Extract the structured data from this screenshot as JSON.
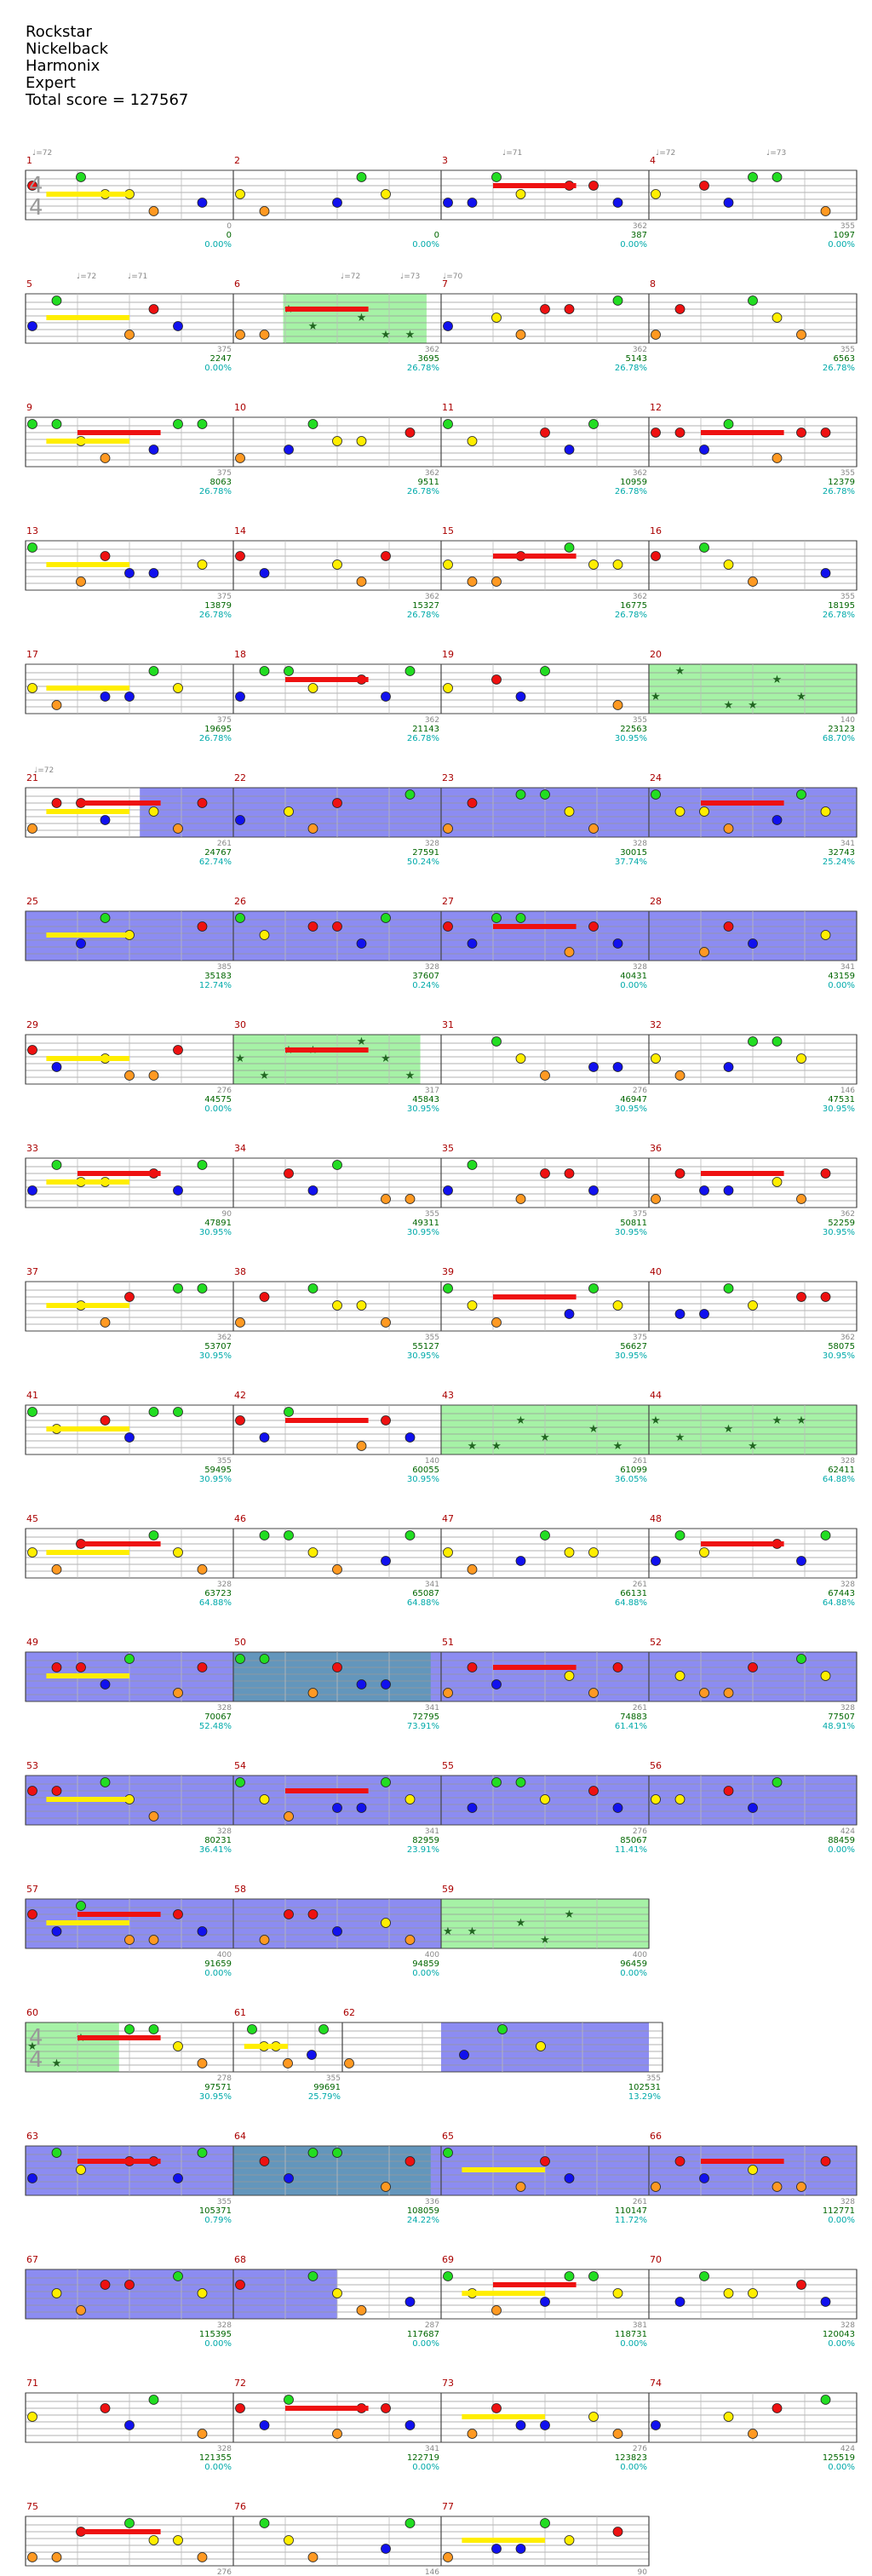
{
  "song": {
    "title": "Rockstar",
    "artist": "Nickelback",
    "charter": "Harmonix",
    "difficulty": "Expert",
    "total_score_label": "Total score = 127567"
  },
  "colors": {
    "green": "#22dd22",
    "red": "#ee1111",
    "yellow": "#ffee00",
    "blue": "#1111ee",
    "orange": "#ff9922",
    "star_power_fill": "#88ee88",
    "overdrive_fill": "#6666ee",
    "measure_number": "#aa0000",
    "score_text": "#006600",
    "multiplier_text": "#00aaaa",
    "tempo_text": "#888888"
  },
  "time_signatures": [
    "4/4 at measure 1",
    "6/4 at measure 60",
    "4/4 at measure 61"
  ],
  "tempo_markers": [
    "♩=72",
    "♩=71",
    "♩=72",
    "♩=73",
    "♩=72",
    "♩=71",
    "♩=72",
    "♩=73",
    "♩=70",
    "♩=72"
  ],
  "rows": [
    {
      "measures": [
        1,
        2,
        3,
        4
      ],
      "cols": [
        {
          "sp": "",
          "score": "",
          "pct": ""
        },
        {
          "sp": "0",
          "score": "0",
          "pct": "0.00%"
        },
        {
          "sp": "",
          "score": "0",
          "pct": "0.00%"
        },
        {
          "sp": "362",
          "score": "387",
          "pct": "0.00%"
        },
        {
          "sp": "355",
          "score": "1097",
          "pct": "0.00%"
        }
      ]
    },
    {
      "measures": [
        5,
        6,
        7,
        8
      ],
      "cols": [
        {
          "sp": "",
          "score": "",
          "pct": ""
        },
        {
          "sp": "375",
          "score": "2247",
          "pct": "0.00%"
        },
        {
          "sp": "362",
          "score": "3695",
          "pct": "26.78%"
        },
        {
          "sp": "362",
          "score": "5143",
          "pct": "26.78%"
        },
        {
          "sp": "355",
          "score": "6563",
          "pct": "26.78%"
        }
      ]
    },
    {
      "measures": [
        9,
        10,
        11,
        12
      ],
      "cols": [
        {
          "sp": "",
          "score": "",
          "pct": ""
        },
        {
          "sp": "375",
          "score": "8063",
          "pct": "26.78%"
        },
        {
          "sp": "362",
          "score": "9511",
          "pct": "26.78%"
        },
        {
          "sp": "362",
          "score": "10959",
          "pct": "26.78%"
        },
        {
          "sp": "355",
          "score": "12379",
          "pct": "26.78%"
        }
      ]
    },
    {
      "measures": [
        13,
        14,
        15,
        16
      ],
      "cols": [
        {
          "sp": "",
          "score": "",
          "pct": ""
        },
        {
          "sp": "375",
          "score": "13879",
          "pct": "26.78%"
        },
        {
          "sp": "362",
          "score": "15327",
          "pct": "26.78%"
        },
        {
          "sp": "362",
          "score": "16775",
          "pct": "26.78%"
        },
        {
          "sp": "355",
          "score": "18195",
          "pct": "26.78%"
        }
      ]
    },
    {
      "measures": [
        17,
        18,
        19,
        20
      ],
      "cols": [
        {
          "sp": "",
          "score": "",
          "pct": ""
        },
        {
          "sp": "375",
          "score": "19695",
          "pct": "26.78%"
        },
        {
          "sp": "362",
          "score": "21143",
          "pct": "26.78%"
        },
        {
          "sp": "355",
          "score": "22563",
          "pct": "30.95%"
        },
        {
          "sp": "140",
          "score": "23123",
          "pct": "68.70%"
        }
      ]
    },
    {
      "measures": [
        21,
        22,
        23,
        24
      ],
      "cols": [
        {
          "sp": "",
          "score": "",
          "pct": ""
        },
        {
          "sp": "261",
          "score": "24767",
          "pct": "62.74%"
        },
        {
          "sp": "328",
          "score": "27591",
          "pct": "50.24%"
        },
        {
          "sp": "328",
          "score": "30015",
          "pct": "37.74%"
        },
        {
          "sp": "341",
          "score": "32743",
          "pct": "25.24%"
        }
      ]
    },
    {
      "measures": [
        25,
        26,
        27,
        28
      ],
      "cols": [
        {
          "sp": "",
          "score": "",
          "pct": ""
        },
        {
          "sp": "385",
          "score": "35183",
          "pct": "12.74%"
        },
        {
          "sp": "328",
          "score": "37607",
          "pct": "0.24%"
        },
        {
          "sp": "328",
          "score": "40431",
          "pct": "0.00%"
        },
        {
          "sp": "341",
          "score": "43159",
          "pct": "0.00%"
        }
      ]
    },
    {
      "measures": [
        29,
        30,
        31,
        32
      ],
      "cols": [
        {
          "sp": "",
          "score": "",
          "pct": ""
        },
        {
          "sp": "276",
          "score": "44575",
          "pct": "0.00%"
        },
        {
          "sp": "317",
          "score": "45843",
          "pct": "30.95%"
        },
        {
          "sp": "276",
          "score": "46947",
          "pct": "30.95%"
        },
        {
          "sp": "146",
          "score": "47531",
          "pct": "30.95%"
        }
      ]
    },
    {
      "measures": [
        33,
        34,
        35,
        36
      ],
      "cols": [
        {
          "sp": "",
          "score": "",
          "pct": ""
        },
        {
          "sp": "90",
          "score": "47891",
          "pct": "30.95%"
        },
        {
          "sp": "355",
          "score": "49311",
          "pct": "30.95%"
        },
        {
          "sp": "375",
          "score": "50811",
          "pct": "30.95%"
        },
        {
          "sp": "362",
          "score": "52259",
          "pct": "30.95%"
        }
      ]
    },
    {
      "measures": [
        37,
        38,
        39,
        40
      ],
      "cols": [
        {
          "sp": "",
          "score": "",
          "pct": ""
        },
        {
          "sp": "362",
          "score": "53707",
          "pct": "30.95%"
        },
        {
          "sp": "355",
          "score": "55127",
          "pct": "30.95%"
        },
        {
          "sp": "375",
          "score": "56627",
          "pct": "30.95%"
        },
        {
          "sp": "362",
          "score": "58075",
          "pct": "30.95%"
        }
      ]
    },
    {
      "measures": [
        41,
        42,
        43,
        44
      ],
      "cols": [
        {
          "sp": "",
          "score": "",
          "pct": ""
        },
        {
          "sp": "355",
          "score": "59495",
          "pct": "30.95%"
        },
        {
          "sp": "140",
          "score": "60055",
          "pct": "30.95%"
        },
        {
          "sp": "261",
          "score": "61099",
          "pct": "36.05%"
        },
        {
          "sp": "328",
          "score": "62411",
          "pct": "64.88%"
        }
      ]
    },
    {
      "measures": [
        45,
        46,
        47,
        48
      ],
      "cols": [
        {
          "sp": "",
          "score": "",
          "pct": ""
        },
        {
          "sp": "328",
          "score": "63723",
          "pct": "64.88%"
        },
        {
          "sp": "341",
          "score": "65087",
          "pct": "64.88%"
        },
        {
          "sp": "261",
          "score": "66131",
          "pct": "64.88%"
        },
        {
          "sp": "328",
          "score": "67443",
          "pct": "64.88%"
        }
      ]
    },
    {
      "measures": [
        49,
        50,
        51,
        52
      ],
      "cols": [
        {
          "sp": "",
          "score": "",
          "pct": ""
        },
        {
          "sp": "328",
          "score": "70067",
          "pct": "52.48%"
        },
        {
          "sp": "341",
          "score": "72795",
          "pct": "73.91%"
        },
        {
          "sp": "261",
          "score": "74883",
          "pct": "61.41%"
        },
        {
          "sp": "328",
          "score": "77507",
          "pct": "48.91%"
        }
      ]
    },
    {
      "measures": [
        53,
        54,
        55,
        56
      ],
      "cols": [
        {
          "sp": "",
          "score": "",
          "pct": ""
        },
        {
          "sp": "328",
          "score": "80231",
          "pct": "36.41%"
        },
        {
          "sp": "341",
          "score": "82959",
          "pct": "23.91%"
        },
        {
          "sp": "276",
          "score": "85067",
          "pct": "11.41%"
        },
        {
          "sp": "424",
          "score": "88459",
          "pct": "0.00%"
        }
      ]
    },
    {
      "measures": [
        57,
        58,
        59
      ],
      "cols": [
        {
          "sp": "",
          "score": "",
          "pct": ""
        },
        {
          "sp": "400",
          "score": "91659",
          "pct": "0.00%"
        },
        {
          "sp": "400",
          "score": "94859",
          "pct": "0.00%"
        },
        {
          "sp": "400",
          "score": "96459",
          "pct": "0.00%"
        }
      ]
    },
    {
      "measures": [
        60,
        61,
        62
      ],
      "cols": [
        {
          "sp": "",
          "score": "",
          "pct": ""
        },
        {
          "sp": "278",
          "score": "97571",
          "pct": "30.95%"
        },
        {
          "sp": "355",
          "score": "99691",
          "pct": "25.79%"
        },
        {
          "sp": "355",
          "score": "102531",
          "pct": "13.29%"
        }
      ]
    },
    {
      "measures": [
        63,
        64,
        65,
        66
      ],
      "cols": [
        {
          "sp": "",
          "score": "",
          "pct": ""
        },
        {
          "sp": "355",
          "score": "105371",
          "pct": "0.79%"
        },
        {
          "sp": "336",
          "score": "108059",
          "pct": "24.22%"
        },
        {
          "sp": "261",
          "score": "110147",
          "pct": "11.72%"
        },
        {
          "sp": "328",
          "score": "112771",
          "pct": "0.00%"
        }
      ]
    },
    {
      "measures": [
        67,
        68,
        69,
        70
      ],
      "cols": [
        {
          "sp": "",
          "score": "",
          "pct": ""
        },
        {
          "sp": "328",
          "score": "115395",
          "pct": "0.00%"
        },
        {
          "sp": "287",
          "score": "117687",
          "pct": "0.00%"
        },
        {
          "sp": "381",
          "score": "118731",
          "pct": "0.00%"
        },
        {
          "sp": "328",
          "score": "120043",
          "pct": "0.00%"
        }
      ]
    },
    {
      "measures": [
        71,
        72,
        73,
        74
      ],
      "cols": [
        {
          "sp": "",
          "score": "",
          "pct": ""
        },
        {
          "sp": "328",
          "score": "121355",
          "pct": "0.00%"
        },
        {
          "sp": "341",
          "score": "122719",
          "pct": "0.00%"
        },
        {
          "sp": "276",
          "score": "123823",
          "pct": "0.00%"
        },
        {
          "sp": "424",
          "score": "125519",
          "pct": "0.00%"
        }
      ]
    },
    {
      "measures": [
        75,
        76,
        77
      ],
      "cols": [
        {
          "sp": "",
          "score": "",
          "pct": ""
        },
        {
          "sp": "276",
          "score": "126623",
          "pct": "0.00%"
        },
        {
          "sp": "146",
          "score": "127207",
          "pct": "0.00%"
        },
        {
          "sp": "90",
          "score": "127567",
          "pct": "0.00%"
        }
      ]
    }
  ]
}
